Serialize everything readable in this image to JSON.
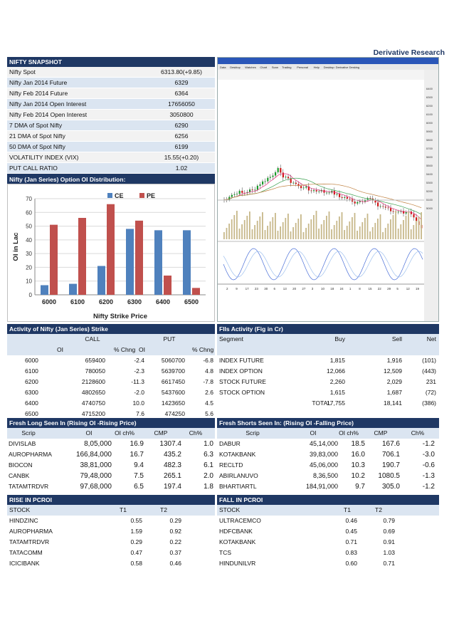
{
  "title": "Derivative Research",
  "snapshot": {
    "header": "NIFTY SNAPSHOT",
    "rows": [
      {
        "label": "Nifty Spot",
        "value": "6313.80(+9.85)"
      },
      {
        "label": "Nifty Jan 2014 Future",
        "value": "6329"
      },
      {
        "label": "Nifty Feb 2014 Future",
        "value": "6364"
      },
      {
        "label": "Nifty Jan 2014 Open Interest",
        "value": "17656050"
      },
      {
        "label": "Nifty Feb 2014 Open Interest",
        "value": "3050800"
      },
      {
        "label": "7 DMA of Spot Nifty",
        "value": "6290"
      },
      {
        "label": "21 DMA of Spot Nifty",
        "value": "6256"
      },
      {
        "label": "50 DMA of Spot Nifty",
        "value": "6199"
      },
      {
        "label": "VOLATILITY INDEX (VIX)",
        "value": "15.55(+0.20)"
      },
      {
        "label": "PUT CALL RATIO",
        "value": "1.02"
      }
    ]
  },
  "oi_header": "Nifty (Jan Series) Option OI Distribution:",
  "chart_data": {
    "type": "bar",
    "categories": [
      "6000",
      "6100",
      "6200",
      "6300",
      "6400",
      "6500"
    ],
    "series": [
      {
        "name": "CE",
        "values": [
          7,
          8,
          21,
          48,
          47,
          47
        ],
        "color": "#4f81bd"
      },
      {
        "name": "PE",
        "values": [
          51,
          56,
          66,
          54,
          14,
          5
        ],
        "color": "#c0504d"
      }
    ],
    "title": "",
    "xlabel": "Nifty Strike Price",
    "ylabel": "OI in Lac",
    "ylim": [
      0,
      70
    ],
    "yticks": [
      "0",
      "10",
      "20",
      "30",
      "40",
      "50",
      "60",
      "70"
    ],
    "grid": true,
    "legend": "top"
  },
  "nifty_strike": {
    "header": "Activity of Nifty (Jan Series) Strike",
    "call_label": "CALL",
    "put_label": "PUT",
    "sub_oi": "OI",
    "sub_chng": "% Chng",
    "sub_oi2": "OI",
    "sub_chng2": "% Chng",
    "rows": [
      {
        "strike": "6000",
        "c_oi": "659400",
        "c_ch": "-2.4",
        "p_oi": "5060700",
        "p_ch": "-6.8"
      },
      {
        "strike": "6100",
        "c_oi": "780050",
        "c_ch": "-2.3",
        "p_oi": "5639700",
        "p_ch": "4.8"
      },
      {
        "strike": "6200",
        "c_oi": "2128600",
        "c_ch": "-11.3",
        "p_oi": "6617450",
        "p_ch": "-7.8"
      },
      {
        "strike": "6300",
        "c_oi": "4802650",
        "c_ch": "-2.0",
        "p_oi": "5437600",
        "p_ch": "2.6"
      },
      {
        "strike": "6400",
        "c_oi": "4740750",
        "c_ch": "10.0",
        "p_oi": "1423650",
        "p_ch": "4.5"
      },
      {
        "strike": "6500",
        "c_oi": "4715200",
        "c_ch": "7.6",
        "p_oi": "474250",
        "p_ch": "5.6"
      }
    ]
  },
  "fii": {
    "header": "FIIs Activity (Fig in Cr)",
    "cols": [
      "Segment",
      "Buy",
      "Sell",
      "Net"
    ],
    "rows": [
      {
        "seg": "INDEX FUTURE",
        "buy": "1,815",
        "sell": "1,916",
        "net": "(101)"
      },
      {
        "seg": "INDEX OPTION",
        "buy": "12,066",
        "sell": "12,509",
        "net": "(443)"
      },
      {
        "seg": "STOCK FUTURE",
        "buy": "2,260",
        "sell": "2,029",
        "net": "231"
      },
      {
        "seg": "STOCK OPTION",
        "buy": "1,615",
        "sell": "1,687",
        "net": "(72)"
      },
      {
        "seg": "TOTAL",
        "buy": "17,755",
        "sell": "18,141",
        "net": "(386)"
      }
    ]
  },
  "fresh_long": {
    "header": "Fresh Long Seen In (Rising OI -Rising Price)",
    "cols": [
      "Scrip",
      "OI",
      "OI ch%",
      "CMP",
      "Ch%"
    ],
    "rows": [
      {
        "s": "DIVISLAB",
        "oi": "8,05,000",
        "oich": "16.9",
        "cmp": "1307.4",
        "ch": "1.0"
      },
      {
        "s": "AUROPHARMA",
        "oi": "166,84,000",
        "oich": "16.7",
        "cmp": "435.2",
        "ch": "6.3"
      },
      {
        "s": "BIOCON",
        "oi": "38,81,000",
        "oich": "9.4",
        "cmp": "482.3",
        "ch": "6.1"
      },
      {
        "s": "CANBK",
        "oi": "79,48,000",
        "oich": "7.5",
        "cmp": "265.1",
        "ch": "2.0"
      },
      {
        "s": "TATAMTRDVR",
        "oi": "97,68,000",
        "oich": "6.5",
        "cmp": "197.4",
        "ch": "1.8"
      }
    ]
  },
  "fresh_short": {
    "header": "Fresh Shorts Seen In: (Rising OI -Falling Price)",
    "cols": [
      "Scrip",
      "OI",
      "OI ch%",
      "CMP",
      "Ch%"
    ],
    "rows": [
      {
        "s": "DABUR",
        "oi": "45,14,000",
        "oich": "18.5",
        "cmp": "167.6",
        "ch": "-1.2"
      },
      {
        "s": "KOTAKBANK",
        "oi": "39,83,000",
        "oich": "16.0",
        "cmp": "706.1",
        "ch": "-3.0"
      },
      {
        "s": "RECLTD",
        "oi": "45,06,000",
        "oich": "10.3",
        "cmp": "190.7",
        "ch": "-0.6"
      },
      {
        "s": "ABIRLANUVO",
        "oi": "8,36,500",
        "oich": "10.2",
        "cmp": "1080.5",
        "ch": "-1.3"
      },
      {
        "s": "BHARTIARTL",
        "oi": "184,91,000",
        "oich": "9.7",
        "cmp": "305.0",
        "ch": "-1.2"
      }
    ]
  },
  "rise_pcroi": {
    "header": "RISE IN PCROI",
    "cols": [
      "STOCK",
      "T1",
      "T2"
    ],
    "rows": [
      {
        "s": "HINDZINC",
        "t1": "0.55",
        "t2": "0.29"
      },
      {
        "s": "AUROPHARMA",
        "t1": "1.59",
        "t2": "0.92"
      },
      {
        "s": "TATAMTRDVR",
        "t1": "0.29",
        "t2": "0.22"
      },
      {
        "s": "TATACOMM",
        "t1": "0.47",
        "t2": "0.37"
      },
      {
        "s": "ICICIBANK",
        "t1": "0.58",
        "t2": "0.46"
      }
    ]
  },
  "fall_pcroi": {
    "header": "FALL IN PCROI",
    "cols": [
      "STOCK",
      "T1",
      "T2"
    ],
    "rows": [
      {
        "s": "ULTRACEMCO",
        "t1": "0.46",
        "t2": "0.79"
      },
      {
        "s": "HDFCBANK",
        "t1": "0.45",
        "t2": "0.69"
      },
      {
        "s": "KOTAKBANK",
        "t1": "0.71",
        "t2": "0.91"
      },
      {
        "s": "TCS",
        "t1": "0.83",
        "t2": "1.03"
      },
      {
        "s": "HINDUNILVR",
        "t1": "0.60",
        "t2": "0.71"
      }
    ]
  },
  "trading_chart": {
    "menu": [
      "Data",
      "Desktop",
      "Watches",
      "Chart",
      "Scan",
      "Trading",
      "Personal",
      "Help",
      "Desktop: Derivative Desking"
    ],
    "price_axis": [
      "6400",
      "6300",
      "6200",
      "6100",
      "6000",
      "5900",
      "5800",
      "5700",
      "5600",
      "5500",
      "5400",
      "5300",
      "5200",
      "5100",
      "5000"
    ],
    "date_axis": [
      "2",
      "9",
      "17",
      "23",
      "30",
      "6",
      "13",
      "20",
      "27",
      "3",
      "10",
      "18",
      "24",
      "1",
      "8",
      "15",
      "22",
      "29",
      "5",
      "12",
      "19"
    ]
  }
}
